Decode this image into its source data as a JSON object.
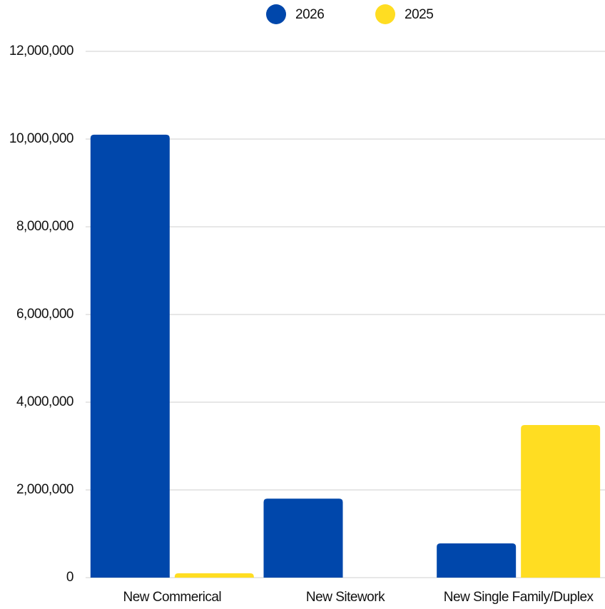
{
  "chart_data": {
    "type": "bar",
    "categories": [
      "New Commerical",
      "New Sitework",
      "New Single Family/Duplex"
    ],
    "series": [
      {
        "name": "2026",
        "color": "#0047ab",
        "values": [
          10100000,
          1800000,
          780000
        ]
      },
      {
        "name": "2025",
        "color": "#ffdd22",
        "values": [
          100000,
          0,
          3480000
        ]
      }
    ],
    "ylim": [
      0,
      12000000
    ],
    "yticks": [
      0,
      {
        "value": 2000000,
        "label": "2,000,000"
      },
      {
        "value": 4000000,
        "label": "4,000,000"
      },
      {
        "value": 6000000,
        "label": "6,000,000"
      },
      {
        "value": 8000000,
        "label": "8,000,000"
      },
      {
        "value": 10000000,
        "label": "10,000,000"
      },
      {
        "value": 12000000,
        "label": "12,000,000"
      }
    ],
    "grid": true,
    "legend": "top"
  }
}
